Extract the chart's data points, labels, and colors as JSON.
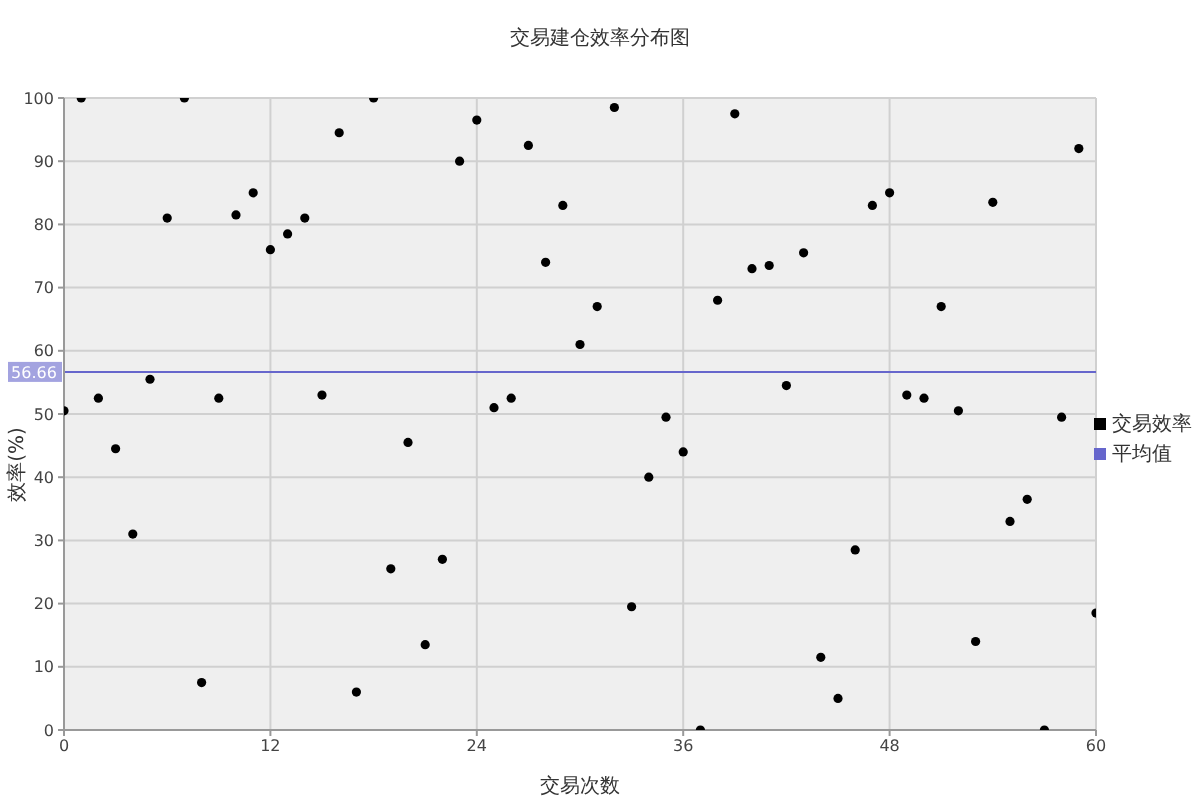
{
  "chart_data": {
    "type": "scatter",
    "title": "交易建仓效率分布图",
    "xlabel": "交易次数",
    "ylabel": "效率(%)",
    "x": [
      0,
      1,
      2,
      3,
      4,
      5,
      6,
      7,
      8,
      9,
      10,
      11,
      12,
      13,
      14,
      15,
      16,
      17,
      18,
      19,
      20,
      21,
      22,
      23,
      24,
      25,
      26,
      27,
      28,
      29,
      30,
      31,
      32,
      33,
      34,
      35,
      36,
      37,
      38,
      39,
      40,
      41,
      42,
      43,
      44,
      45,
      46,
      47,
      48,
      49,
      50,
      51,
      52,
      53,
      54,
      55,
      56,
      57,
      58,
      59,
      60
    ],
    "series": [
      {
        "name": "交易效率",
        "color": "#000000",
        "values": [
          50.5,
          100,
          52.5,
          44.5,
          31,
          55.5,
          81,
          100,
          7.5,
          52.5,
          81.5,
          85,
          76,
          78.5,
          81,
          53,
          94.5,
          6,
          100,
          25.5,
          45.5,
          13.5,
          27,
          90,
          96.5,
          51,
          52.5,
          92.5,
          74,
          83,
          61,
          67,
          98.5,
          19.5,
          40,
          49.5,
          44,
          0,
          68,
          97.5,
          73,
          73.5,
          54.5,
          75.5,
          11.5,
          5,
          28.5,
          83,
          85,
          53,
          52.5,
          67,
          50.5,
          14,
          83.5,
          33,
          36.5,
          0,
          49.5,
          92,
          18.5
        ]
      }
    ],
    "annotations": [
      {
        "text": "56.66",
        "y": 56.66
      }
    ],
    "ref_lines": [
      {
        "axis": "y",
        "value": 56.66,
        "label": "平均值",
        "color": "#6666cc"
      }
    ],
    "xlim": [
      0,
      60
    ],
    "xticks": [
      0,
      12,
      24,
      36,
      48,
      60
    ],
    "ylim": [
      0,
      100
    ],
    "yticks": [
      0,
      10,
      20,
      30,
      40,
      50,
      60,
      70,
      80,
      90,
      100
    ],
    "grid": true,
    "legend": "right",
    "marker": "circle"
  }
}
